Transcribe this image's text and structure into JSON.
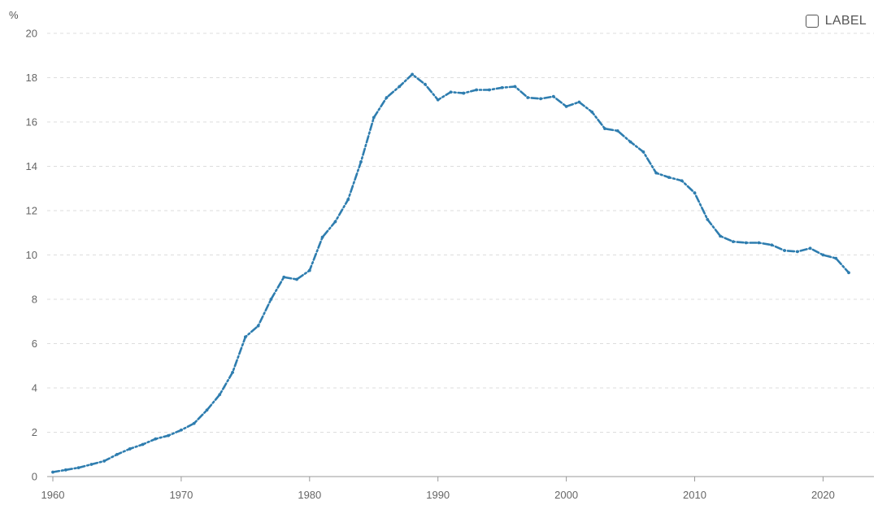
{
  "legend": {
    "label": "LABEL",
    "checked": false
  },
  "colors": {
    "series": "#2E7DAF",
    "grid": "#dddddd",
    "axis": "#999999",
    "text": "#666666"
  },
  "chart_data": {
    "type": "line",
    "ylabel": "%",
    "xlabel": "",
    "xlim": [
      1960,
      2022
    ],
    "ylim": [
      0,
      20
    ],
    "x_ticks": [
      1960,
      1970,
      1980,
      1990,
      2000,
      2010,
      2020
    ],
    "y_ticks": [
      0,
      2,
      4,
      6,
      8,
      10,
      12,
      14,
      16,
      18,
      20
    ],
    "grid": "horizontal-dashed",
    "legend_position": "top-right",
    "line_style": "dash-dot",
    "series": [
      {
        "x": [
          1960,
          1961,
          1962,
          1963,
          1964,
          1965,
          1966,
          1967,
          1968,
          1969,
          1970,
          1971,
          1972,
          1973,
          1974,
          1975,
          1976,
          1977,
          1978,
          1979,
          1980,
          1981,
          1982,
          1983,
          1984,
          1985,
          1986,
          1987,
          1988,
          1989,
          1990,
          1991,
          1992,
          1993,
          1994,
          1995,
          1996,
          1997,
          1998,
          1999,
          2000,
          2001,
          2002,
          2003,
          2004,
          2005,
          2006,
          2007,
          2008,
          2009,
          2010,
          2011,
          2012,
          2013,
          2014,
          2015,
          2016,
          2017,
          2018,
          2019,
          2020,
          2021,
          2022
        ],
        "values": [
          0.2,
          0.3,
          0.4,
          0.55,
          0.7,
          1.0,
          1.25,
          1.45,
          1.7,
          1.85,
          2.1,
          2.4,
          3.0,
          3.7,
          4.7,
          6.3,
          6.8,
          8.0,
          9.0,
          8.9,
          9.3,
          10.8,
          11.5,
          12.5,
          14.2,
          16.2,
          17.1,
          17.6,
          18.15,
          17.7,
          17.0,
          17.35,
          17.3,
          17.45,
          17.45,
          17.55,
          17.6,
          17.1,
          17.05,
          17.15,
          16.7,
          16.9,
          16.45,
          15.7,
          15.6,
          15.1,
          14.65,
          13.7,
          13.5,
          13.35,
          12.8,
          11.6,
          10.85,
          10.6,
          10.55,
          10.55,
          10.45,
          10.2,
          10.15,
          10.3,
          10.0,
          9.85,
          9.2
        ]
      }
    ]
  }
}
